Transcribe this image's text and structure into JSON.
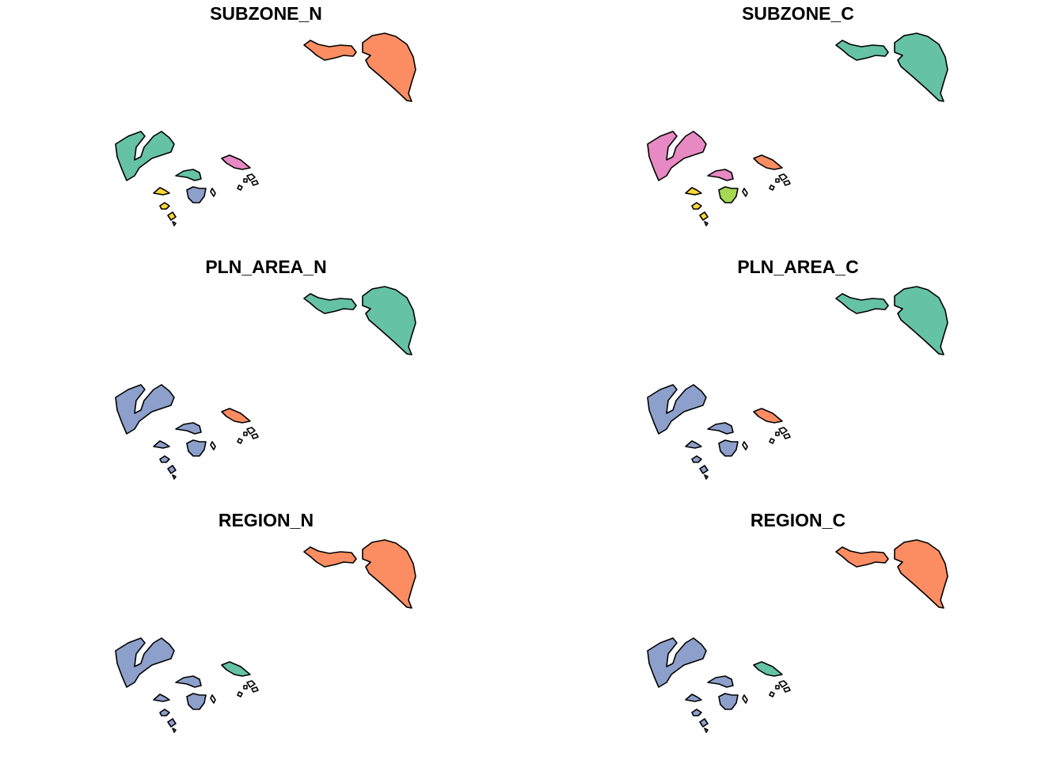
{
  "panels": [
    {
      "title": "SUBZONE_N",
      "fills": {
        "north_small": "#fc8d62",
        "north_big": "#fc8d62",
        "west_large": "#66c2a5",
        "center_top": "#66c2a5",
        "center_bottom": "#8da0cb",
        "small_left": "#ffd92f",
        "small_left_b": "#ffd92f",
        "small_left_c": "#ffd92f",
        "east": "#e78ac3",
        "east_islets": "#ffffff"
      }
    },
    {
      "title": "SUBZONE_C",
      "fills": {
        "north_small": "#66c2a5",
        "north_big": "#66c2a5",
        "west_large": "#e78ac3",
        "center_top": "#e78ac3",
        "center_bottom": "#a6d854",
        "small_left": "#ffd92f",
        "small_left_b": "#ffd92f",
        "small_left_c": "#ffd92f",
        "east": "#fc8d62",
        "east_islets": "#ffffff"
      }
    },
    {
      "title": "PLN_AREA_N",
      "fills": {
        "north_small": "#66c2a5",
        "north_big": "#66c2a5",
        "west_large": "#8da0cb",
        "center_top": "#8da0cb",
        "center_bottom": "#8da0cb",
        "small_left": "#8da0cb",
        "small_left_b": "#8da0cb",
        "small_left_c": "#8da0cb",
        "east": "#fc8d62",
        "east_islets": "#ffffff"
      }
    },
    {
      "title": "PLN_AREA_C",
      "fills": {
        "north_small": "#66c2a5",
        "north_big": "#66c2a5",
        "west_large": "#8da0cb",
        "center_top": "#8da0cb",
        "center_bottom": "#8da0cb",
        "small_left": "#8da0cb",
        "small_left_b": "#8da0cb",
        "small_left_c": "#8da0cb",
        "east": "#fc8d62",
        "east_islets": "#ffffff"
      }
    },
    {
      "title": "REGION_N",
      "fills": {
        "north_small": "#fc8d62",
        "north_big": "#fc8d62",
        "west_large": "#8da0cb",
        "center_top": "#8da0cb",
        "center_bottom": "#8da0cb",
        "small_left": "#8da0cb",
        "small_left_b": "#8da0cb",
        "small_left_c": "#8da0cb",
        "east": "#66c2a5",
        "east_islets": "#ffffff"
      }
    },
    {
      "title": "REGION_C",
      "fills": {
        "north_small": "#fc8d62",
        "north_big": "#fc8d62",
        "west_large": "#8da0cb",
        "center_top": "#8da0cb",
        "center_bottom": "#8da0cb",
        "small_left": "#8da0cb",
        "small_left_b": "#8da0cb",
        "small_left_c": "#8da0cb",
        "east": "#66c2a5",
        "east_islets": "#ffffff"
      }
    }
  ]
}
